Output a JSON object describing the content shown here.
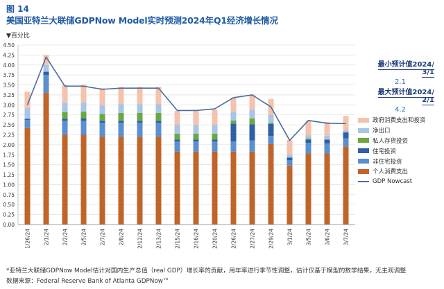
{
  "figure_label": "图 14",
  "title": "美国亚特兰大联储GDPNow Model实时预测2024年Q1经济增长情况",
  "unit_label": "百分比",
  "callouts": {
    "min_label": "最小预计值2024/ 3/1",
    "min_value": "2.1",
    "max_label": "最大预计值2024/ 2/1",
    "max_value": "4.2"
  },
  "footnotes": {
    "note": "*亚特兰大联储GDPNow Model估计对国内生产总值（real GDP）增长率的贡献，用年率进行季节性调整，估计仅基于模型的数学结果，无主观调整",
    "source": "数据来源：Federal Reserve Bank of Atlanta GDPNow™"
  },
  "colors": {
    "consumption": "#c0652a",
    "nonres_inv": "#5a8fd0",
    "res_inv": "#2e5fa8",
    "inventory": "#6ba83f",
    "net_exports": "#a8c4e6",
    "government": "#f4c2ad",
    "nowcast_line": "#4a6d9e"
  },
  "chart_data": {
    "type": "bar",
    "stacked": true,
    "categories": [
      "1/26/24",
      "2/1/24",
      "2/2/24",
      "2/5/24",
      "2/7/24",
      "2/8/24",
      "2/12/24",
      "2/13/24",
      "2/15/24",
      "2/16/24",
      "2/20/24",
      "2/26/24",
      "2/27/24",
      "2/29/24",
      "3/1/24",
      "3/5/24",
      "3/6/24",
      "3/7/24"
    ],
    "ylim": [
      0,
      4.5
    ],
    "yticks": [
      "0.00",
      "0.25",
      "0.50",
      "0.75",
      "1.00",
      "1.25",
      "1.50",
      "1.75",
      "2.00",
      "2.25",
      "2.50",
      "2.75",
      "3.00",
      "3.25",
      "3.50",
      "3.75",
      "4.00",
      "4.25",
      "4.50"
    ],
    "series": [
      {
        "name": "个人消费支出",
        "key": "consumption",
        "values": [
          2.42,
          3.3,
          2.25,
          2.25,
          2.2,
          2.2,
          2.2,
          2.2,
          1.83,
          1.83,
          1.83,
          1.83,
          1.83,
          2.02,
          1.48,
          1.78,
          1.78,
          1.96
        ]
      },
      {
        "name": "非住宅投资",
        "key": "nonres_inv",
        "values": [
          0.2,
          0.45,
          0.35,
          0.35,
          0.35,
          0.35,
          0.35,
          0.35,
          0.25,
          0.25,
          0.25,
          0.25,
          0.28,
          0.2,
          0.13,
          0.27,
          0.25,
          0.2
        ]
      },
      {
        "name": "住宅投资",
        "key": "res_inv",
        "values": [
          0.03,
          0.08,
          0.05,
          0.06,
          0.05,
          0.05,
          0.05,
          0.05,
          0.05,
          0.05,
          0.05,
          0.45,
          0.4,
          0.3,
          0.07,
          0.08,
          0.1,
          0.15
        ]
      },
      {
        "name": "私人存货投资",
        "key": "inventory",
        "values": [
          0,
          0,
          0.17,
          0.17,
          0.17,
          0.2,
          0.2,
          0.2,
          0.15,
          0.15,
          0.15,
          0.08,
          0.15,
          0.03,
          0,
          0.03,
          0,
          0
        ]
      },
      {
        "name": "净出口",
        "key": "net_exports",
        "values": [
          0.26,
          0.17,
          0.23,
          0.23,
          0.22,
          0.22,
          0.22,
          0.22,
          0.22,
          0.22,
          0.22,
          0.22,
          0.22,
          0.2,
          0.07,
          0.08,
          0.1,
          0.06
        ]
      },
      {
        "name": "政府消费支出和投资",
        "key": "government",
        "values": [
          0.42,
          0.25,
          0.45,
          0.45,
          0.43,
          0.43,
          0.43,
          0.43,
          0.35,
          0.35,
          0.38,
          0.35,
          0.38,
          0.4,
          0.37,
          0.36,
          0.34,
          0.35
        ]
      }
    ],
    "line": {
      "name": "GDP Nowcast",
      "values": [
        3.0,
        4.2,
        3.47,
        3.47,
        3.39,
        3.42,
        3.42,
        3.42,
        2.86,
        2.86,
        2.9,
        3.18,
        3.25,
        2.95,
        2.11,
        2.61,
        2.54,
        2.53
      ]
    }
  }
}
